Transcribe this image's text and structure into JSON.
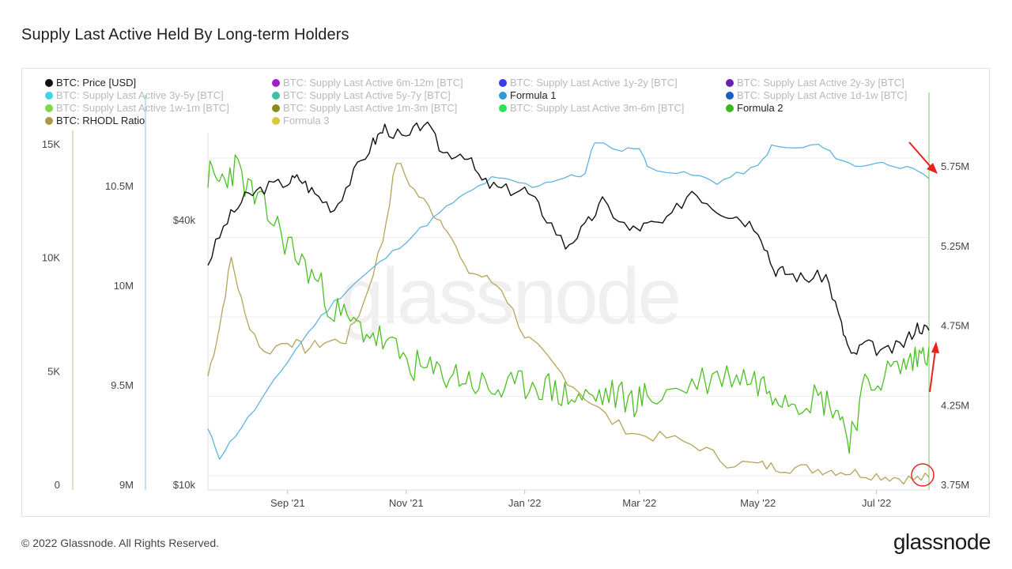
{
  "title": "Supply Last Active Held By Long-term Holders",
  "footer": "© 2022 Glassnode. All Rights Reserved.",
  "brand": "glassnode",
  "watermark": "glassnode",
  "legend": [
    {
      "label": "BTC: Price [USD]",
      "color": "#111111",
      "active": true
    },
    {
      "label": "BTC: Supply Last Active 6m-12m [BTC]",
      "color": "#a020c8",
      "active": false
    },
    {
      "label": "BTC: Supply Last Active 1y-2y [BTC]",
      "color": "#3a3ae8",
      "active": false
    },
    {
      "label": "BTC: Supply Last Active 2y-3y [BTC]",
      "color": "#6a1fb8",
      "active": false
    },
    {
      "label": "BTC: Supply Last Active 3y-5y [BTC]",
      "color": "#3ed3e8",
      "active": false
    },
    {
      "label": "BTC: Supply Last Active 5y-7y [BTC]",
      "color": "#3ec0a8",
      "active": false
    },
    {
      "label": "Formula 1",
      "color": "#2e9ad6",
      "active": true
    },
    {
      "label": "BTC: Supply Last Active 1d-1w [BTC]",
      "color": "#1a5fc8",
      "active": false
    },
    {
      "label": "BTC: Supply Last Active 1w-1m [BTC]",
      "color": "#7ed84a",
      "active": false
    },
    {
      "label": "BTC: Supply Last Active 1m-3m [BTC]",
      "color": "#8a8a1a",
      "active": false
    },
    {
      "label": "BTC: Supply Last Active 3m-6m [BTC]",
      "color": "#2ee05a",
      "active": false
    },
    {
      "label": "Formula 2",
      "color": "#3cb81c",
      "active": true
    },
    {
      "label": "BTC: RHODL Ratio",
      "color": "#a89a4a",
      "active": true
    },
    {
      "label": "Formula 3",
      "color": "#d8c83a",
      "active": false
    }
  ],
  "colors": {
    "price": "#111111",
    "formula1": "#5fb3e0",
    "formula2": "#4cc022",
    "rhodl": "#b5a35a",
    "axis_formula1": "#7fc6ec",
    "axis_rhodl": "#c9bf8a",
    "arrow": "#e8231e",
    "circle": "#e8231e",
    "grid": "#eeeeee"
  },
  "chart_data": {
    "type": "line",
    "x_range": [
      "2021-07-22",
      "2022-07-28"
    ],
    "x_tick_labels": [
      "Sep '21",
      "Nov '21",
      "Jan '22",
      "Mar '22",
      "May '22",
      "Jul '22"
    ],
    "x_tick_dates": [
      "2021-09-01",
      "2021-11-01",
      "2022-01-01",
      "2022-03-01",
      "2022-05-01",
      "2022-07-01"
    ],
    "axes": {
      "rhodl_left": {
        "ticks": [
          0,
          5000,
          10000,
          15000
        ],
        "tick_labels": [
          "0",
          "5K",
          "10K",
          "15K"
        ],
        "range": [
          0,
          15000
        ]
      },
      "formula1_left": {
        "ticks": [
          9000000,
          9500000,
          10000000,
          10500000
        ],
        "tick_labels": [
          "9M",
          "9.5M",
          "10M",
          "10.5M"
        ],
        "range": [
          9000000,
          10800000
        ]
      },
      "price_log": {
        "ticks": [
          10000,
          40000
        ],
        "tick_labels": [
          "$10k",
          "$40k"
        ],
        "range": [
          10000,
          80000
        ],
        "scale": "log"
      },
      "formula2_right": {
        "ticks": [
          3750000,
          4250000,
          4750000,
          5250000,
          5750000
        ],
        "tick_labels": [
          "3.75M",
          "4.25M",
          "4.75M",
          "5.25M",
          "5.75M"
        ],
        "range": [
          3750000,
          5900000
        ]
      }
    },
    "series": [
      {
        "name": "BTC: Price [USD]",
        "axis": "price_log",
        "x": [
          "2021-07-22",
          "2021-08-01",
          "2021-08-10",
          "2021-08-20",
          "2021-09-01",
          "2021-09-07",
          "2021-09-15",
          "2021-09-25",
          "2021-10-05",
          "2021-10-15",
          "2021-10-21",
          "2021-11-01",
          "2021-11-10",
          "2021-11-20",
          "2021-12-01",
          "2021-12-10",
          "2021-12-20",
          "2022-01-01",
          "2022-01-10",
          "2022-01-22",
          "2022-02-01",
          "2022-02-10",
          "2022-02-24",
          "2022-03-05",
          "2022-03-15",
          "2022-03-28",
          "2022-04-10",
          "2022-04-20",
          "2022-05-01",
          "2022-05-09",
          "2022-05-15",
          "2022-05-25",
          "2022-06-05",
          "2022-06-13",
          "2022-06-18",
          "2022-06-25",
          "2022-07-05",
          "2022-07-15",
          "2022-07-22",
          "2022-07-28"
        ],
        "values": [
          32000,
          40000,
          45000,
          47500,
          49000,
          50000,
          46000,
          42500,
          51000,
          60000,
          65000,
          61000,
          67000,
          57000,
          57000,
          49000,
          47000,
          47000,
          42000,
          35000,
          38500,
          44000,
          38000,
          39000,
          39500,
          47000,
          42500,
          41000,
          38500,
          31000,
          30500,
          29500,
          30000,
          23000,
          19500,
          21000,
          20000,
          21000,
          23000,
          22500
        ]
      },
      {
        "name": "Formula 1",
        "axis": "formula1_left",
        "x": [
          "2021-07-22",
          "2021-07-28",
          "2021-08-05",
          "2021-08-15",
          "2021-08-25",
          "2021-09-05",
          "2021-09-15",
          "2021-09-25",
          "2021-10-05",
          "2021-10-15",
          "2021-10-25",
          "2021-11-05",
          "2021-11-15",
          "2021-11-25",
          "2021-12-05",
          "2021-12-15",
          "2021-12-25",
          "2022-01-05",
          "2022-01-15",
          "2022-01-25",
          "2022-02-01",
          "2022-02-06",
          "2022-02-20",
          "2022-03-01",
          "2022-03-05",
          "2022-03-20",
          "2022-04-01",
          "2022-04-10",
          "2022-04-20",
          "2022-05-01",
          "2022-05-08",
          "2022-05-20",
          "2022-06-01",
          "2022-06-10",
          "2022-06-20",
          "2022-07-01",
          "2022-07-10",
          "2022-07-20",
          "2022-07-28"
        ],
        "values": [
          9280000,
          9140000,
          9250000,
          9380000,
          9520000,
          9680000,
          9810000,
          9920000,
          10010000,
          10090000,
          10170000,
          10260000,
          10340000,
          10420000,
          10480000,
          10540000,
          10530000,
          10500000,
          10530000,
          10550000,
          10560000,
          10730000,
          10680000,
          10700000,
          10600000,
          10570000,
          10550000,
          10520000,
          10560000,
          10600000,
          10700000,
          10690000,
          10710000,
          10650000,
          10600000,
          10620000,
          10610000,
          10580000,
          10540000
        ]
      },
      {
        "name": "Formula 2",
        "axis": "formula2_right",
        "x": [
          "2021-07-22",
          "2021-07-28",
          "2021-08-05",
          "2021-08-15",
          "2021-08-25",
          "2021-09-05",
          "2021-09-15",
          "2021-09-25",
          "2021-10-05",
          "2021-10-15",
          "2021-10-25",
          "2021-11-05",
          "2021-11-15",
          "2021-11-25",
          "2021-12-05",
          "2021-12-15",
          "2021-12-25",
          "2022-01-05",
          "2022-01-15",
          "2022-01-25",
          "2022-02-05",
          "2022-02-15",
          "2022-02-25",
          "2022-03-05",
          "2022-03-20",
          "2022-04-05",
          "2022-04-20",
          "2022-05-01",
          "2022-05-10",
          "2022-05-20",
          "2022-06-01",
          "2022-06-10",
          "2022-06-17",
          "2022-06-25",
          "2022-07-05",
          "2022-07-15",
          "2022-07-22",
          "2022-07-28"
        ],
        "values": [
          5700000,
          5650000,
          5750000,
          5550000,
          5400000,
          5200000,
          5050000,
          4850000,
          4750000,
          4700000,
          4600000,
          4500000,
          4450000,
          4450000,
          4400000,
          4350000,
          4350000,
          4400000,
          4350000,
          4300000,
          4300000,
          4320000,
          4280000,
          4300000,
          4350000,
          4420000,
          4450000,
          4400000,
          4350000,
          4300000,
          4300000,
          4250000,
          4050000,
          4350000,
          4450000,
          4500000,
          4550000,
          4620000
        ]
      },
      {
        "name": "BTC: RHODL Ratio",
        "axis": "rhodl_left",
        "x": [
          "2021-07-22",
          "2021-07-28",
          "2021-08-03",
          "2021-08-10",
          "2021-08-20",
          "2021-09-01",
          "2021-09-10",
          "2021-09-20",
          "2021-10-01",
          "2021-10-10",
          "2021-10-20",
          "2021-10-27",
          "2021-11-05",
          "2021-11-15",
          "2021-11-22",
          "2021-12-01",
          "2021-12-10",
          "2021-12-20",
          "2022-01-01",
          "2022-01-10",
          "2022-01-20",
          "2022-02-01",
          "2022-02-15",
          "2022-03-01",
          "2022-03-15",
          "2022-04-01",
          "2022-04-15",
          "2022-05-01",
          "2022-05-10",
          "2022-05-20",
          "2022-06-01",
          "2022-06-10",
          "2022-06-20",
          "2022-07-01",
          "2022-07-10",
          "2022-07-20",
          "2022-07-28"
        ],
        "values": [
          4800,
          7000,
          10000,
          7500,
          5800,
          6400,
          6000,
          6300,
          6400,
          8000,
          10800,
          14300,
          13000,
          12000,
          11400,
          9500,
          9200,
          8700,
          6600,
          5800,
          4900,
          3900,
          2800,
          2200,
          2100,
          1700,
          1000,
          900,
          800,
          750,
          700,
          650,
          550,
          450,
          350,
          250,
          350
        ]
      }
    ],
    "annotations": [
      {
        "type": "arrow",
        "direction": "down",
        "label": "",
        "near": "Formula 1 end"
      },
      {
        "type": "arrow",
        "direction": "up",
        "label": "",
        "near": "Formula 2 end"
      },
      {
        "type": "circle",
        "label": "",
        "near": "RHODL Ratio end"
      }
    ]
  }
}
